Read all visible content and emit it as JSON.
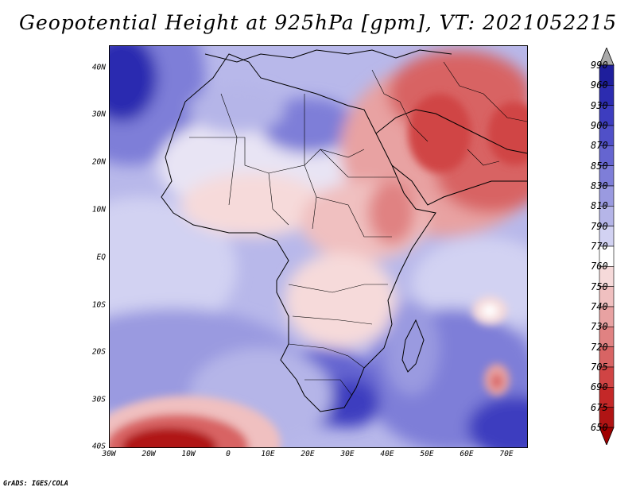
{
  "title": "Geopotential Height at 925hPa [gpm], VT: 2021052215",
  "footer": "GrADS: IGES/COLA",
  "lon_labels": [
    "30W",
    "20W",
    "10W",
    "0",
    "10E",
    "20E",
    "30E",
    "40E",
    "50E",
    "60E",
    "70E"
  ],
  "lat_labels": [
    "40N",
    "30N",
    "20N",
    "10N",
    "EQ",
    "10S",
    "20S",
    "30S",
    "40S"
  ],
  "colorbar": {
    "levels": [
      "990",
      "960",
      "930",
      "900",
      "870",
      "850",
      "830",
      "810",
      "790",
      "770",
      "760",
      "750",
      "740",
      "730",
      "720",
      "705",
      "690",
      "675",
      "650"
    ],
    "colors": [
      "#aaaaaa",
      "#1e1e9c",
      "#2c2cb0",
      "#3d3dbf",
      "#5050c8",
      "#6565d0",
      "#7e7ed8",
      "#9a9ae0",
      "#b5b5e8",
      "#d2d2f2",
      "#ffffff",
      "#f6dada",
      "#f0c0c0",
      "#e8a2a2",
      "#e08282",
      "#d86464",
      "#d04444",
      "#c42828",
      "#b01414",
      "#a00000"
    ]
  }
}
